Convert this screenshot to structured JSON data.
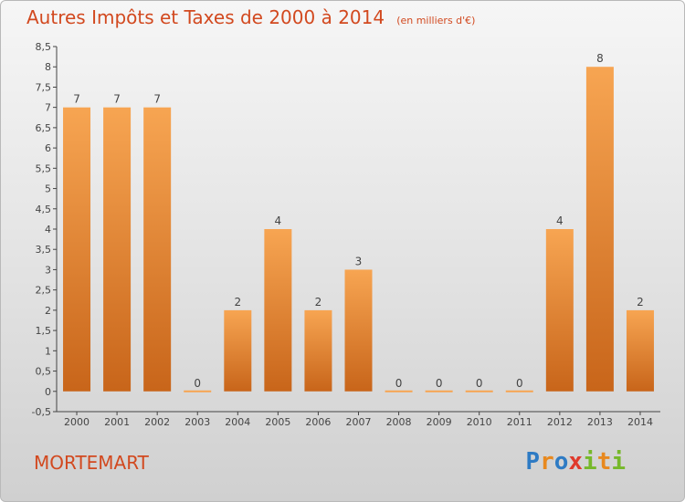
{
  "header": {
    "title": "Autres Impôts et Taxes de 2000 à 2014",
    "unit": "(en milliers d'€)"
  },
  "commune": "MORTEMART",
  "logo": {
    "text": "Proxiti",
    "letters": [
      {
        "ch": "P",
        "color": "#2e7bc4"
      },
      {
        "ch": "r",
        "color": "#e8891f"
      },
      {
        "ch": "o",
        "color": "#2e7bc4"
      },
      {
        "ch": "x",
        "color": "#e03a2c"
      },
      {
        "ch": "i",
        "color": "#76b82a"
      },
      {
        "ch": "t",
        "color": "#e8891f"
      },
      {
        "ch": "i",
        "color": "#76b82a"
      }
    ]
  },
  "colors": {
    "bar_top": "#f7a552",
    "bar_bottom": "#c8651a",
    "accent": "#d2491f"
  },
  "chart_data": {
    "type": "bar",
    "title": "Autres Impôts et Taxes de 2000 à 2014",
    "unit": "(en milliers d'€)",
    "categories": [
      "2000",
      "2001",
      "2002",
      "2003",
      "2004",
      "2005",
      "2006",
      "2007",
      "2008",
      "2009",
      "2010",
      "2011",
      "2012",
      "2013",
      "2014"
    ],
    "values": [
      7,
      7,
      7,
      0,
      2,
      4,
      2,
      3,
      0,
      0,
      0,
      0,
      4,
      8,
      2
    ],
    "ylim": [
      -0.5,
      8.5
    ],
    "yticks": [
      "-0,5",
      "0",
      "0,5",
      "1",
      "1,5",
      "2",
      "2,5",
      "3",
      "3,5",
      "4",
      "4,5",
      "5",
      "5,5",
      "6",
      "6,5",
      "7",
      "7,5",
      "8",
      "8,5"
    ],
    "ytick_values": [
      -0.5,
      0,
      0.5,
      1,
      1.5,
      2,
      2.5,
      3,
      3.5,
      4,
      4.5,
      5,
      5.5,
      6,
      6.5,
      7,
      7.5,
      8,
      8.5
    ],
    "grid": false,
    "legend": "none"
  }
}
